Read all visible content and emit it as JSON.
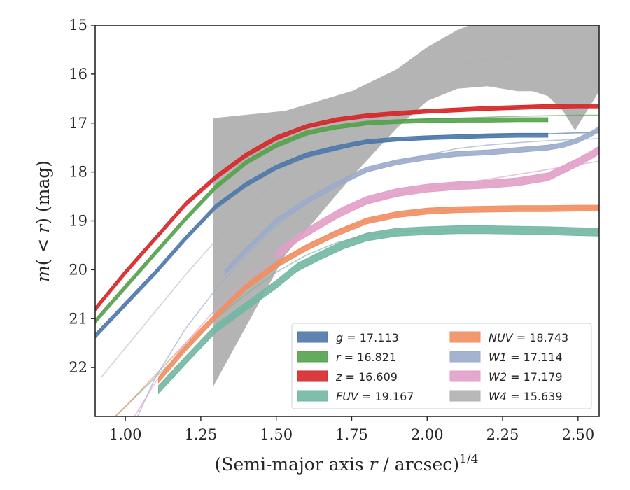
{
  "chart_data": {
    "type": "line",
    "xlabel": "(Semi-major axis r / arcsec)",
    "xlabel_parts": {
      "main": "(Semi-major axis ",
      "var": "r",
      "rest": " / arcsec)",
      "sup": "1/4"
    },
    "ylabel_parts": {
      "var1": "m",
      "mid": "( < ",
      "var2": "r",
      "end": ") (mag)"
    },
    "xlim": [
      0.9,
      2.57
    ],
    "ylim": [
      23.0,
      15.0
    ],
    "y_inverted": true,
    "xticks": [
      "1.00",
      "1.25",
      "1.50",
      "1.75",
      "2.00",
      "2.25",
      "2.50"
    ],
    "yticks": [
      "15",
      "16",
      "17",
      "18",
      "19",
      "20",
      "21",
      "22"
    ],
    "grid": false,
    "legend_position": "lower-right",
    "series": [
      {
        "name": "g = 17.113",
        "band": "g",
        "value": "17.113",
        "color": "#4c78a8",
        "thin": {
          "x": [
            0.9,
            1.0,
            1.1,
            1.2,
            1.3,
            1.4,
            1.5,
            1.6,
            1.7,
            1.8,
            1.9,
            2.0,
            2.1,
            2.2,
            2.3,
            2.4,
            2.5,
            2.57
          ],
          "y": [
            21.4,
            20.75,
            20.1,
            19.4,
            18.75,
            18.3,
            17.95,
            17.7,
            17.55,
            17.4,
            17.35,
            17.3,
            17.28,
            17.25,
            17.23,
            17.22,
            17.2,
            17.2
          ]
        },
        "band_x": [
          0.9,
          1.0,
          1.1,
          1.2,
          1.3,
          1.4,
          1.5,
          1.6,
          1.7,
          1.8,
          1.9,
          2.0,
          2.1,
          2.2,
          2.3,
          2.4
        ],
        "band_y": [
          21.35,
          20.7,
          20.05,
          19.35,
          18.7,
          18.25,
          17.9,
          17.65,
          17.5,
          17.38,
          17.33,
          17.3,
          17.28,
          17.26,
          17.25,
          17.25
        ],
        "band_halfwidth": 0.04
      },
      {
        "name": "r = 16.821",
        "band": "r",
        "value": "16.821",
        "color": "#54a24b",
        "thin": {
          "x": [
            0.9,
            1.0,
            1.1,
            1.2,
            1.3,
            1.4,
            1.5,
            1.6,
            1.7,
            1.8,
            1.9,
            2.0,
            2.1,
            2.2,
            2.3,
            2.4,
            2.5,
            2.57
          ],
          "y": [
            21.1,
            20.4,
            19.7,
            19.0,
            18.35,
            17.85,
            17.5,
            17.25,
            17.1,
            17.0,
            16.95,
            16.92,
            16.9,
            16.88,
            16.86,
            16.85,
            16.84,
            16.84
          ]
        },
        "band_x": [
          0.9,
          1.0,
          1.1,
          1.2,
          1.3,
          1.4,
          1.5,
          1.6,
          1.7,
          1.8,
          1.9,
          2.0,
          2.1,
          2.2,
          2.3,
          2.4
        ],
        "band_y": [
          21.05,
          20.35,
          19.65,
          18.95,
          18.3,
          17.8,
          17.45,
          17.2,
          17.08,
          17.0,
          16.97,
          16.95,
          16.94,
          16.94,
          16.93,
          16.93
        ],
        "band_halfwidth": 0.04
      },
      {
        "name": "z = 16.609",
        "band": "z",
        "value": "16.609",
        "color": "#d62728",
        "thin": {
          "x": [
            0.9,
            1.0,
            1.1,
            1.2,
            1.3,
            1.4,
            1.5,
            1.6,
            1.7,
            1.8,
            1.9,
            2.0,
            2.1,
            2.2,
            2.3,
            2.4,
            2.5,
            2.57
          ],
          "y": [
            20.85,
            20.1,
            19.4,
            18.7,
            18.15,
            17.7,
            17.35,
            17.1,
            16.95,
            16.85,
            16.8,
            16.76,
            16.73,
            16.7,
            16.68,
            16.66,
            16.65,
            16.65
          ]
        },
        "band_x": [
          0.9,
          1.0,
          1.1,
          1.2,
          1.3,
          1.4,
          1.5,
          1.6,
          1.7,
          1.8,
          1.9,
          2.0,
          2.1,
          2.2,
          2.3,
          2.4,
          2.5,
          2.57
        ],
        "band_y": [
          20.8,
          20.05,
          19.35,
          18.65,
          18.1,
          17.65,
          17.3,
          17.07,
          16.93,
          16.85,
          16.8,
          16.76,
          16.73,
          16.7,
          16.68,
          16.66,
          16.65,
          16.65
        ],
        "band_halfwidth": 0.04
      },
      {
        "name": "FUV = 19.167",
        "band": "FUV",
        "value": "19.167",
        "color": "#72b7a3",
        "thin": {
          "x": [
            0.9,
            1.0,
            1.1,
            1.2,
            1.3,
            1.4,
            1.5,
            1.6,
            1.7,
            1.8,
            1.9,
            2.0,
            2.1,
            2.2,
            2.3,
            2.4,
            2.5,
            2.57
          ],
          "y": [
            23.4,
            22.8,
            22.2,
            21.6,
            21.0,
            20.5,
            20.05,
            19.7,
            19.45,
            19.3,
            19.22,
            19.2,
            19.19,
            19.18,
            19.18,
            19.18,
            19.19,
            19.19
          ]
        },
        "band_x": [
          1.11,
          1.2,
          1.3,
          1.4,
          1.5,
          1.57,
          1.65,
          1.72,
          1.8,
          1.9,
          2.0,
          2.1,
          2.2,
          2.3,
          2.4,
          2.5,
          2.57
        ],
        "band_y": [
          22.45,
          21.85,
          21.2,
          20.75,
          20.3,
          19.95,
          19.7,
          19.5,
          19.33,
          19.23,
          19.2,
          19.18,
          19.18,
          19.19,
          19.2,
          19.22,
          19.23
        ],
        "band_halfwidth": 0.08
      },
      {
        "name": "NUV = 18.743",
        "band": "NUV",
        "value": "18.743",
        "color": "#f28e62",
        "thin": {
          "x": [
            0.9,
            1.0,
            1.1,
            1.2,
            1.3,
            1.4,
            1.5,
            1.6,
            1.7,
            1.8,
            1.9,
            2.0,
            2.1,
            2.2,
            2.3,
            2.4,
            2.5,
            2.57
          ],
          "y": [
            23.4,
            22.8,
            22.15,
            21.5,
            20.9,
            20.35,
            19.9,
            19.5,
            19.2,
            19.0,
            18.88,
            18.8,
            18.77,
            18.76,
            18.75,
            18.75,
            18.74,
            18.74
          ]
        },
        "band_x": [
          1.11,
          1.2,
          1.3,
          1.4,
          1.5,
          1.6,
          1.7,
          1.8,
          1.9,
          2.0,
          2.1,
          2.2,
          2.3,
          2.4,
          2.5,
          2.57
        ],
        "band_y": [
          22.25,
          21.6,
          20.95,
          20.35,
          19.9,
          19.55,
          19.25,
          19.0,
          18.87,
          18.8,
          18.77,
          18.76,
          18.75,
          18.75,
          18.74,
          18.74
        ],
        "band_halfwidth": 0.06
      },
      {
        "name": "W1 = 17.114",
        "band": "W1",
        "value": "17.114",
        "color": "#9aabcb",
        "thin": {
          "x": [
            1.04,
            1.1,
            1.2,
            1.3,
            1.4,
            1.5,
            1.6,
            1.7,
            1.8,
            1.9,
            2.0,
            2.1,
            2.2,
            2.3,
            2.4,
            2.5,
            2.57
          ],
          "y": [
            23.0,
            22.2,
            21.2,
            20.4,
            19.7,
            19.1,
            18.65,
            18.3,
            18.0,
            17.8,
            17.65,
            17.52,
            17.45,
            17.4,
            17.36,
            17.33,
            17.32
          ]
        },
        "band_x": [
          1.33,
          1.4,
          1.5,
          1.6,
          1.7,
          1.8,
          1.9,
          2.0,
          2.1,
          2.2,
          2.3,
          2.4,
          2.45,
          2.5,
          2.55,
          2.57
        ],
        "band_y": [
          20.05,
          19.6,
          19.0,
          18.6,
          18.25,
          17.95,
          17.8,
          17.7,
          17.63,
          17.6,
          17.55,
          17.5,
          17.45,
          17.35,
          17.2,
          17.12
        ],
        "band_halfwidth": 0.05
      },
      {
        "name": "W2 = 17.179",
        "band": "W2",
        "value": "17.179",
        "color": "#e29fc8",
        "thin": {
          "x": [
            1.0,
            1.1,
            1.2,
            1.3,
            1.4,
            1.5,
            1.6,
            1.7,
            1.8,
            1.9,
            2.0,
            2.1,
            2.2,
            2.3,
            2.4,
            2.5,
            2.57
          ],
          "y": [
            23.3,
            22.3,
            21.5,
            20.8,
            20.2,
            19.7,
            19.3,
            18.95,
            18.65,
            18.45,
            18.32,
            18.25,
            18.15,
            18.05,
            17.95,
            17.85,
            17.78
          ]
        },
        "band_x": [
          1.5,
          1.57,
          1.65,
          1.72,
          1.8,
          1.9,
          2.0,
          2.1,
          2.2,
          2.3,
          2.4,
          2.45,
          2.5,
          2.55,
          2.57
        ],
        "band_y": [
          19.7,
          19.35,
          19.05,
          18.8,
          18.58,
          18.42,
          18.33,
          18.28,
          18.25,
          18.2,
          18.1,
          17.95,
          17.8,
          17.63,
          17.55
        ],
        "band_halfwidth": 0.08
      },
      {
        "name": "W4 = 15.639",
        "band": "W4",
        "value": "15.639",
        "color": "#b0b0b0",
        "thin": {
          "x": [
            0.92,
            1.0,
            1.1,
            1.2,
            1.3,
            1.4,
            1.5,
            1.6,
            1.7,
            1.8,
            1.9,
            2.0,
            2.1,
            2.2,
            2.3,
            2.4,
            2.5,
            2.57
          ],
          "y": [
            22.2,
            21.6,
            20.85,
            20.1,
            19.4,
            18.75,
            18.15,
            17.6,
            17.1,
            16.7,
            16.3,
            16.0,
            15.8,
            15.7,
            15.65,
            15.64,
            15.64,
            15.64
          ]
        },
        "band_x": [
          1.29,
          1.53,
          1.75,
          1.9,
          2.0,
          2.1,
          2.2,
          2.3,
          2.35,
          2.4,
          2.45,
          2.49,
          2.52,
          2.57
        ],
        "band_upper": [
          16.9,
          16.75,
          16.35,
          15.9,
          15.45,
          15.1,
          14.85,
          14.65,
          14.55,
          14.5,
          14.5,
          14.5,
          14.5,
          14.5
        ],
        "band_lower": [
          22.4,
          19.7,
          18.1,
          17.1,
          16.55,
          16.3,
          16.25,
          16.35,
          16.35,
          16.45,
          16.75,
          17.15,
          16.85,
          16.35
        ]
      }
    ]
  }
}
